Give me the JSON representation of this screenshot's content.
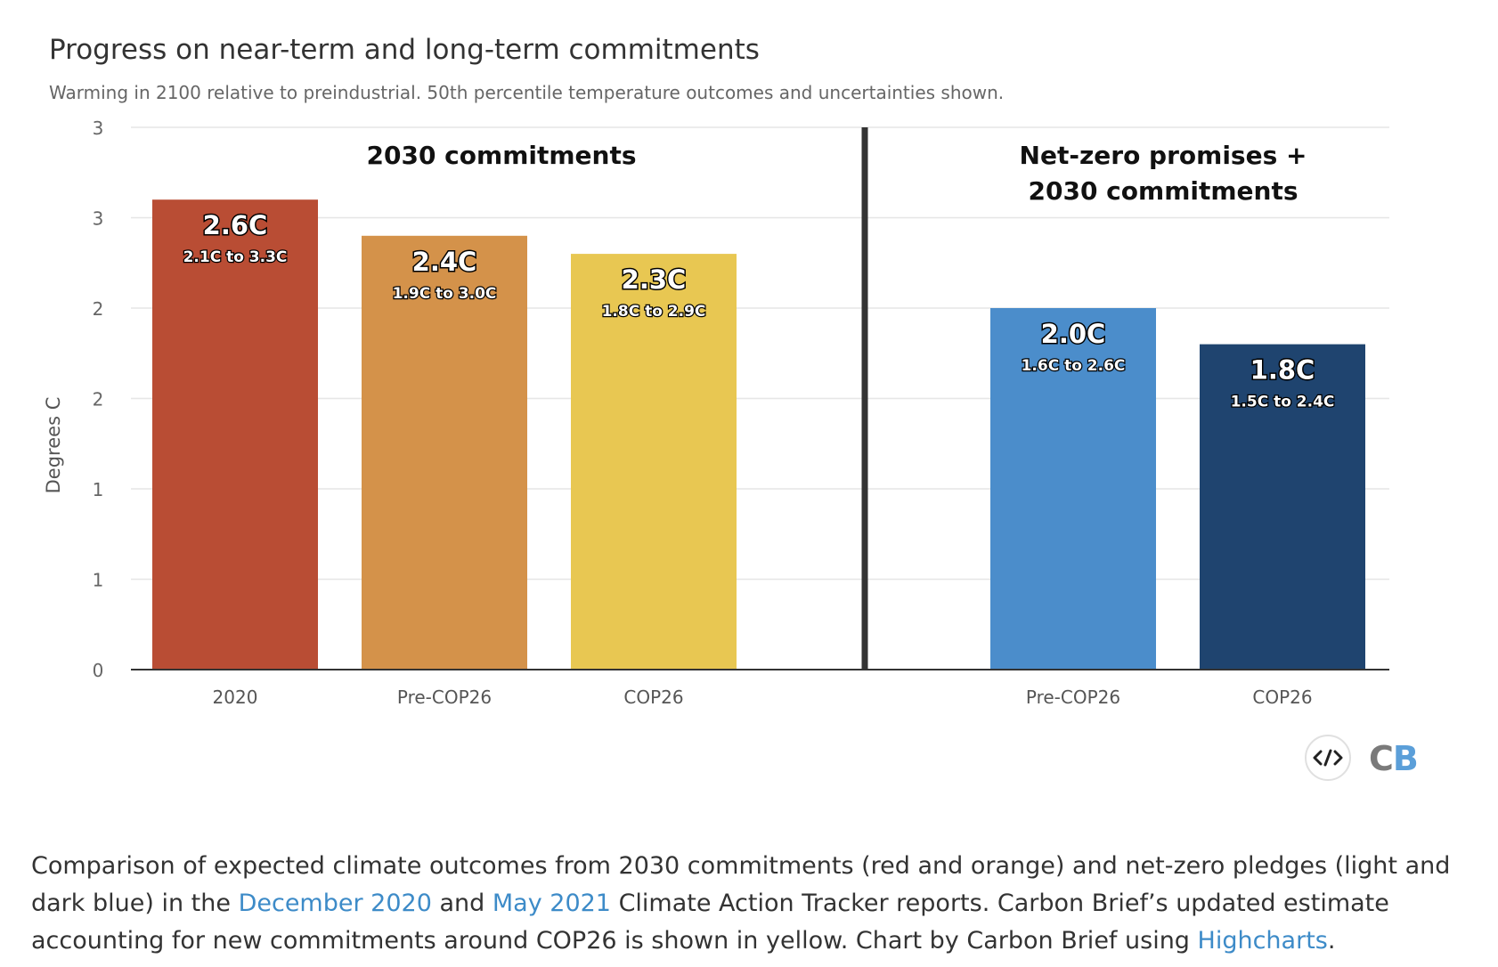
{
  "chart_data": {
    "type": "bar",
    "title": "Progress on near-term and long-term commitments",
    "subtitle": "Warming in 2100 relative to preindustrial. 50th percentile temperature outcomes and uncertainties shown.",
    "ylabel": "Degrees C",
    "xlabel": "",
    "ylim": [
      0,
      3
    ],
    "y_tick_labels": [
      "0",
      "1",
      "1",
      "2",
      "2",
      "3",
      "3"
    ],
    "y_ticks": [
      0,
      0.5,
      1,
      1.5,
      2,
      2.5,
      3
    ],
    "grid": true,
    "groups": [
      {
        "label": "2030 commitments"
      },
      {
        "label_lines": [
          "Net-zero promises +",
          "2030 commitments"
        ]
      }
    ],
    "categories": [
      "2020",
      "Pre-COP26",
      "COP26",
      "Pre-COP26",
      "COP26"
    ],
    "values": [
      2.6,
      2.4,
      2.3,
      2.0,
      1.8
    ],
    "value_labels": [
      "2.6C",
      "2.4C",
      "2.3C",
      "2.0C",
      "1.8C"
    ],
    "range_labels": [
      "2.1C to 3.3C",
      "1.9C to 3.0C",
      "1.8C to 2.9C",
      "1.6C to 2.6C",
      "1.5C to 2.4C"
    ],
    "colors": [
      "#b94d34",
      "#d4924a",
      "#e8c752",
      "#4b8dcb",
      "#1f446f"
    ]
  },
  "caption": {
    "t1": "Comparison of expected climate outcomes from 2030 commitments (red and orange) and net-zero pledges (light and dark blue) in the ",
    "link1": "December 2020",
    "t2": " and ",
    "link2": "May 2021",
    "t3": " Climate Action Tracker reports. Carbon Brief’s updated estimate accounting for new commitments around COP26 is shown in yellow. Chart by Carbon Brief using ",
    "link3": "Highcharts",
    "t4": "."
  },
  "logo": {
    "c": "C",
    "b": "B"
  },
  "icons": {
    "embed": "code-embed-icon"
  }
}
